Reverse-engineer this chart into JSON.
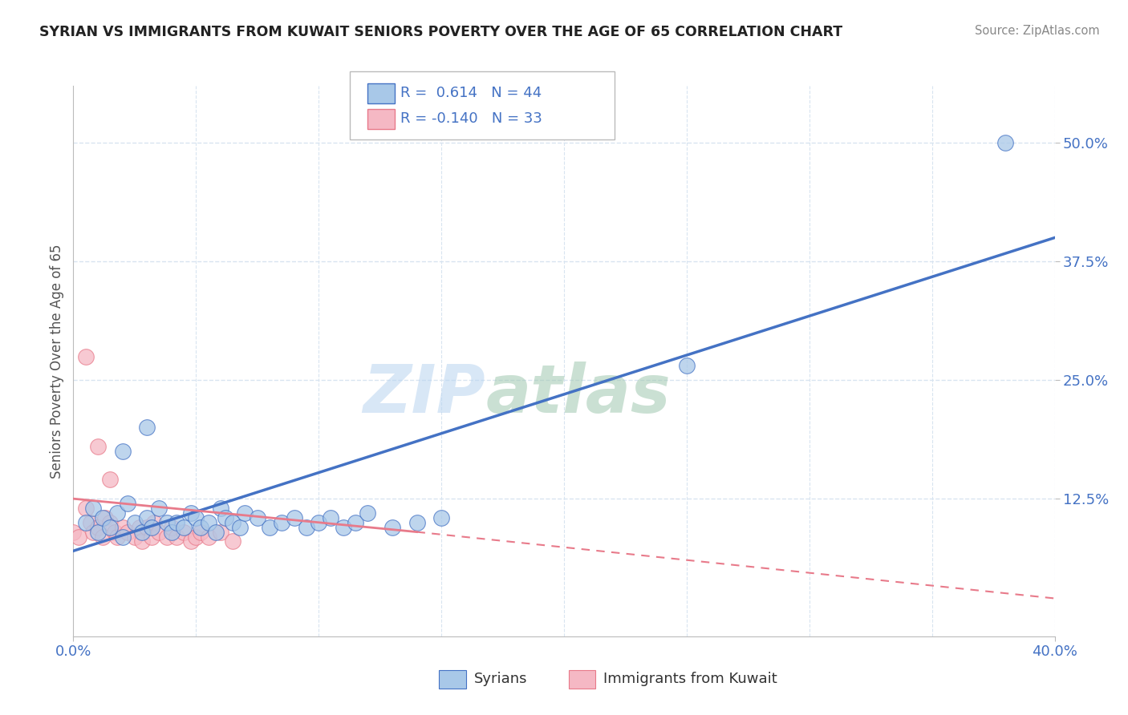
{
  "title": "SYRIAN VS IMMIGRANTS FROM KUWAIT SENIORS POVERTY OVER THE AGE OF 65 CORRELATION CHART",
  "source": "Source: ZipAtlas.com",
  "ylabel": "Seniors Poverty Over the Age of 65",
  "ytick_labels": [
    "12.5%",
    "25.0%",
    "37.5%",
    "50.0%"
  ],
  "ytick_values": [
    0.125,
    0.25,
    0.375,
    0.5
  ],
  "xrange": [
    0.0,
    0.4
  ],
  "yrange": [
    -0.02,
    0.56
  ],
  "legend_syrian_R": "0.614",
  "legend_syrian_N": "44",
  "legend_kuwait_R": "-0.140",
  "legend_kuwait_N": "33",
  "color_syrian": "#a8c8e8",
  "color_syrian_line": "#4472c4",
  "color_kuwait": "#f5b8c4",
  "color_kuwait_line": "#e87a8a",
  "watermark_zip": "ZIP",
  "watermark_atlas": "atlas",
  "background": "#ffffff",
  "grid_color": "#d8e4f0",
  "syrian_line_x0": 0.0,
  "syrian_line_y0": 0.07,
  "syrian_line_x1": 0.4,
  "syrian_line_y1": 0.4,
  "kuwait_line_x0": 0.0,
  "kuwait_line_y0": 0.125,
  "kuwait_line_x1_solid": 0.14,
  "kuwait_line_y1_solid": 0.09,
  "kuwait_line_x1_dash": 0.4,
  "kuwait_line_y1_dash": 0.02,
  "syrian_scatter_x": [
    0.005,
    0.008,
    0.01,
    0.012,
    0.015,
    0.018,
    0.02,
    0.022,
    0.025,
    0.028,
    0.03,
    0.032,
    0.035,
    0.038,
    0.04,
    0.042,
    0.045,
    0.048,
    0.05,
    0.052,
    0.055,
    0.058,
    0.06,
    0.062,
    0.065,
    0.068,
    0.07,
    0.075,
    0.08,
    0.085,
    0.09,
    0.095,
    0.1,
    0.105,
    0.11,
    0.115,
    0.12,
    0.13,
    0.14,
    0.15,
    0.02,
    0.03,
    0.25,
    0.38
  ],
  "syrian_scatter_y": [
    0.1,
    0.115,
    0.09,
    0.105,
    0.095,
    0.11,
    0.085,
    0.12,
    0.1,
    0.09,
    0.105,
    0.095,
    0.115,
    0.1,
    0.09,
    0.1,
    0.095,
    0.11,
    0.105,
    0.095,
    0.1,
    0.09,
    0.115,
    0.105,
    0.1,
    0.095,
    0.11,
    0.105,
    0.095,
    0.1,
    0.105,
    0.095,
    0.1,
    0.105,
    0.095,
    0.1,
    0.11,
    0.095,
    0.1,
    0.105,
    0.175,
    0.2,
    0.265,
    0.5
  ],
  "kuwait_scatter_x": [
    0.0,
    0.002,
    0.005,
    0.007,
    0.008,
    0.01,
    0.012,
    0.013,
    0.015,
    0.017,
    0.018,
    0.02,
    0.022,
    0.025,
    0.027,
    0.028,
    0.03,
    0.032,
    0.033,
    0.035,
    0.038,
    0.04,
    0.042,
    0.045,
    0.048,
    0.05,
    0.052,
    0.055,
    0.06,
    0.065,
    0.005,
    0.01,
    0.015
  ],
  "kuwait_scatter_y": [
    0.09,
    0.085,
    0.115,
    0.1,
    0.09,
    0.095,
    0.085,
    0.105,
    0.1,
    0.09,
    0.085,
    0.095,
    0.09,
    0.085,
    0.095,
    0.08,
    0.095,
    0.085,
    0.1,
    0.09,
    0.085,
    0.095,
    0.085,
    0.09,
    0.08,
    0.085,
    0.09,
    0.085,
    0.09,
    0.08,
    0.275,
    0.18,
    0.145
  ]
}
